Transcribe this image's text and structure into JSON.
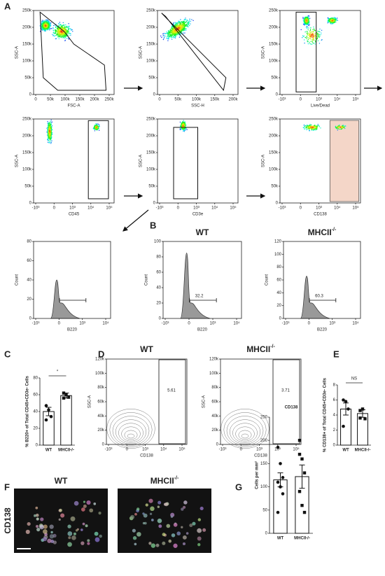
{
  "panel_letters": [
    "A",
    "B",
    "C",
    "D",
    "E",
    "F",
    "G"
  ],
  "flow_plots": [
    {
      "ylabel": "SSC-A",
      "xlabel": "FSC-A",
      "yticks": [
        "0",
        "50k",
        "100k",
        "150k",
        "200k",
        "250k"
      ],
      "xticks": [
        "0",
        "50k",
        "100k",
        "150k",
        "200k",
        "250k"
      ]
    },
    {
      "ylabel": "SSC-A",
      "xlabel": "SSC-H",
      "yticks": [
        "0",
        "50k",
        "100k",
        "150k",
        "200k",
        "250k"
      ],
      "xticks": [
        "0",
        "50k",
        "100k",
        "150k",
        "200k"
      ]
    },
    {
      "ylabel": "SSC-A",
      "xlabel": "Live/Dead",
      "yticks": [
        "0",
        "50k",
        "100k",
        "150k",
        "200k",
        "250k"
      ],
      "xticks": [
        "-10³",
        "0",
        "10³",
        "10⁴",
        "10⁵"
      ]
    },
    {
      "ylabel": "SSC-A",
      "xlabel": "CD45",
      "yticks": [
        "0",
        "50k",
        "100k",
        "150k",
        "200k",
        "250k"
      ],
      "xticks": [
        "-10³",
        "0",
        "10³",
        "10⁴",
        "10⁵"
      ]
    },
    {
      "ylabel": "SSC-A",
      "xlabel": "CD3e",
      "yticks": [
        "0",
        "50k",
        "100k",
        "150k",
        "200k",
        "250k"
      ],
      "xticks": [
        "-10³",
        "0",
        "10³",
        "10⁴",
        "10⁵"
      ]
    },
    {
      "ylabel": "SSC-A",
      "xlabel": "CD138",
      "yticks": [
        "0",
        "50k",
        "100k",
        "150k",
        "200k",
        "250k"
      ],
      "xticks": [
        "-10³",
        "0",
        "10³",
        "10⁴",
        "10⁵"
      ]
    }
  ],
  "histograms": [
    {
      "ylabel": "Count",
      "xlabel": "B220",
      "yticks": [
        "0",
        "20",
        "40",
        "60",
        "80"
      ],
      "xticks": [
        "-10³",
        "0",
        "10³",
        "10⁴"
      ]
    },
    {
      "title": "WT",
      "ylabel": "Count",
      "xlabel": "B220",
      "yticks": [
        "0",
        "20",
        "40",
        "60",
        "80",
        "100"
      ],
      "xticks": [
        "-10³",
        "0",
        "10³",
        "10⁴"
      ],
      "gate_label": "32.2"
    },
    {
      "title": "MHCII",
      "title_sup": "-/-",
      "ylabel": "Count",
      "xlabel": "B220",
      "yticks": [
        "0",
        "20",
        "40",
        "60",
        "80",
        "100",
        "120"
      ],
      "xticks": [
        "-10³",
        "0",
        "10³",
        "10⁴"
      ],
      "gate_label": "60.3"
    }
  ],
  "contours": [
    {
      "title": "WT",
      "ylabel": "SSC-A",
      "xlabel": "CD138",
      "yticks": [
        "0",
        "20k",
        "40k",
        "60k",
        "80k",
        "100k",
        "120k"
      ],
      "xticks": [
        "-10³",
        "0",
        "10³",
        "10⁴",
        "10⁵"
      ],
      "gate_label": "5.61"
    },
    {
      "title": "MHCII",
      "title_sup": "-/-",
      "ylabel": "SSC-A",
      "xlabel": "CD138",
      "yticks": [
        "0",
        "20k",
        "40k",
        "60k",
        "80k",
        "100k",
        "120k"
      ],
      "xticks": [
        "-10³",
        "0",
        "10³",
        "10⁴",
        "10⁵"
      ],
      "gate_label": "3.71"
    }
  ],
  "bar_charts": [
    {
      "type": "bar",
      "ylabel": "% B220+ of Total CD45+CD3e- Cells",
      "categories": [
        "WT",
        "MHCII-/-"
      ],
      "values": [
        40,
        59
      ],
      "errors": [
        5,
        3
      ],
      "points": [
        [
          47,
          42,
          34,
          30
        ],
        [
          62,
          60,
          57,
          56
        ]
      ],
      "ylim": [
        0,
        80
      ],
      "yticks": [
        0,
        20,
        40,
        60,
        80
      ],
      "significance": "*"
    },
    {
      "type": "bar",
      "ylabel": "% CD138+ of Total CD45+CD3e- Cells",
      "categories": [
        "WT",
        "MHCII-/-"
      ],
      "values": [
        4.8,
        4.2
      ],
      "errors": [
        0.8,
        0.5
      ],
      "points": [
        [
          6,
          5.8,
          4.8,
          2.5
        ],
        [
          4.6,
          4.8,
          3.5,
          3.6
        ]
      ],
      "ylim": [
        0,
        8
      ],
      "yticks": [
        0,
        2,
        4,
        6,
        8
      ],
      "significance": "NS"
    },
    {
      "type": "bar",
      "title": "CD138",
      "ylabel": "Cells per mm²",
      "categories": [
        "WT",
        "MHCII-/-"
      ],
      "values": [
        115,
        122
      ],
      "errors": [
        15,
        25
      ],
      "points": [
        [
          185,
          150,
          120,
          110,
          100,
          85,
          45
        ],
        [
          200,
          160,
          130,
          90,
          60,
          45,
          170
        ]
      ],
      "ylim": [
        0,
        250
      ],
      "yticks": [
        0,
        50,
        100,
        150,
        200,
        250
      ]
    }
  ],
  "images": {
    "ylabel": "CD138",
    "titles": [
      "WT",
      "MHCII"
    ],
    "title_sup": "-/-"
  }
}
